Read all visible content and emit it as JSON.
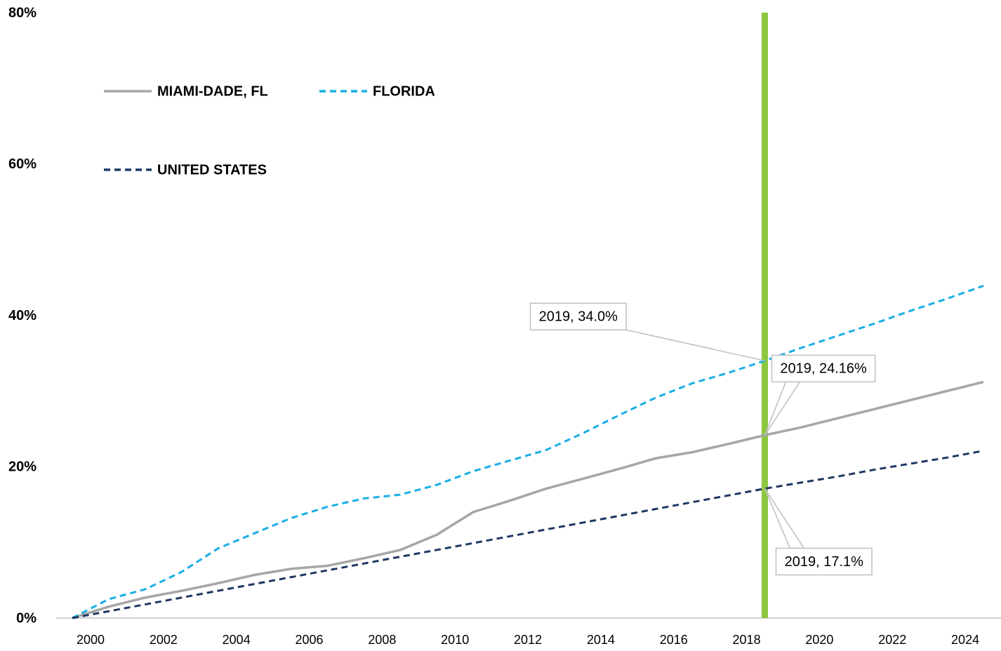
{
  "chart_data": {
    "type": "line",
    "x": [
      2000,
      2001,
      2002,
      2003,
      2004,
      2005,
      2006,
      2007,
      2008,
      2009,
      2010,
      2011,
      2012,
      2013,
      2014,
      2015,
      2016,
      2017,
      2018,
      2019,
      2020,
      2021,
      2022,
      2023,
      2024,
      2025
    ],
    "series": [
      {
        "name": "MIAMI-DADE, FL",
        "color": "#a6a6a6",
        "dash": "solid",
        "values": [
          0,
          1.5,
          2.7,
          3.6,
          4.6,
          5.7,
          6.5,
          6.9,
          7.9,
          9.0,
          11.0,
          14.0,
          15.5,
          17.1,
          18.4,
          19.7,
          21.1,
          21.9,
          23.0,
          24.16,
          25.2,
          26.4,
          27.6,
          28.8,
          30.0,
          31.2
        ],
        "value_labels": [
          null,
          null,
          null,
          null,
          null,
          null,
          null,
          null,
          null,
          null,
          null,
          null,
          null,
          null,
          null,
          null,
          null,
          null,
          null,
          "2019, 24.16%",
          null,
          null,
          null,
          null,
          null,
          null
        ]
      },
      {
        "name": "FLORIDA",
        "color": "#1aaee6",
        "dash": "dashed",
        "values": [
          0,
          2.5,
          3.8,
          6.1,
          9.2,
          11.2,
          13.2,
          14.7,
          15.8,
          16.3,
          17.6,
          19.4,
          20.8,
          22.2,
          24.4,
          26.8,
          29.1,
          31.0,
          32.4,
          34.0,
          35.7,
          37.3,
          38.9,
          40.6,
          42.2,
          43.9
        ],
        "value_labels": [
          null,
          null,
          null,
          null,
          null,
          null,
          null,
          null,
          null,
          null,
          null,
          null,
          null,
          null,
          null,
          null,
          null,
          null,
          null,
          "2019, 34.0%",
          null,
          null,
          null,
          null,
          null,
          null
        ]
      },
      {
        "name": "UNITED STATES",
        "color": "#1f3864",
        "dash": "dashed",
        "values": [
          0,
          0.9,
          1.8,
          2.7,
          3.6,
          4.5,
          5.4,
          6.3,
          7.2,
          8.1,
          9.0,
          9.9,
          10.8,
          11.7,
          12.6,
          13.5,
          14.4,
          15.3,
          16.2,
          17.1,
          17.9,
          18.7,
          19.6,
          20.4,
          21.2,
          22.1
        ],
        "value_labels": [
          null,
          null,
          null,
          null,
          null,
          null,
          null,
          null,
          null,
          null,
          null,
          null,
          null,
          null,
          null,
          null,
          null,
          null,
          null,
          "2019, 17.1%",
          null,
          null,
          null,
          null,
          null,
          null
        ]
      }
    ],
    "xlim": [
      2000,
      2025
    ],
    "xticks": [
      2000,
      2002,
      2004,
      2006,
      2008,
      2010,
      2012,
      2014,
      2016,
      2018,
      2020,
      2022,
      2024
    ],
    "ylim": [
      0,
      80
    ],
    "yticks": [
      {
        "value": 0,
        "label": "0%"
      },
      {
        "value": 20,
        "label": "20%"
      },
      {
        "value": 40,
        "label": "40%"
      },
      {
        "value": 60,
        "label": "60%"
      },
      {
        "value": 80,
        "label": "80%"
      }
    ],
    "vline": {
      "x": 2019,
      "color": "#8dc63f"
    },
    "grid": false,
    "legend": "upper left"
  }
}
